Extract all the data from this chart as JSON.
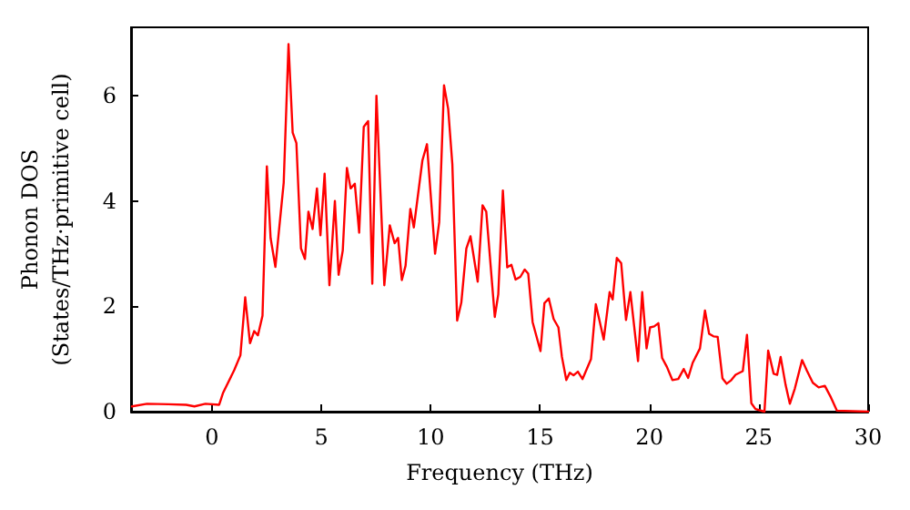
{
  "chart_data": {
    "type": "line",
    "xlabel": "Frequency (THz)",
    "ylabel": "Phonon DOS\n(States/THz·primitive cell)",
    "xlim": [
      -3.7,
      30
    ],
    "ylim": [
      0,
      7.3
    ],
    "xticks": [
      0,
      5,
      10,
      15,
      20,
      25,
      30
    ],
    "yticks": [
      0,
      2,
      4,
      6
    ],
    "grid": false,
    "marker": "none",
    "line_style": "solid",
    "series": [
      {
        "color": "#ff0000",
        "x": [
          -3.66,
          -2.97,
          -2,
          -1.18,
          -0.8,
          -0.3,
          0.33,
          0.5,
          1.02,
          1.3,
          1.52,
          1.74,
          1.93,
          2.1,
          2.31,
          2.51,
          2.68,
          2.9,
          3.28,
          3.5,
          3.69,
          3.86,
          4.07,
          4.25,
          4.41,
          4.6,
          4.8,
          4.96,
          5.15,
          5.37,
          5.62,
          5.79,
          5.98,
          6.17,
          6.34,
          6.53,
          6.73,
          6.94,
          7.14,
          7.33,
          7.52,
          7.88,
          8.13,
          8.35,
          8.51,
          8.68,
          8.85,
          9.07,
          9.23,
          9.62,
          9.83,
          10.2,
          10.39,
          10.61,
          10.8,
          10.99,
          11.21,
          11.4,
          11.63,
          11.82,
          12.15,
          12.37,
          12.54,
          12.93,
          13.09,
          13.3,
          13.5,
          13.69,
          13.88,
          14.1,
          14.3,
          14.46,
          14.66,
          15.02,
          15.2,
          15.4,
          15.62,
          15.84,
          16.0,
          16.2,
          16.36,
          16.53,
          16.73,
          16.94,
          17.33,
          17.55,
          17.91,
          18.18,
          18.32,
          18.51,
          18.71,
          18.93,
          19.13,
          19.48,
          19.67,
          19.87,
          20.03,
          20.22,
          20.41,
          20.58,
          20.8,
          21.05,
          21.32,
          21.57,
          21.77,
          21.98,
          22.31,
          22.54,
          22.73,
          22.93,
          23.12,
          23.34,
          23.53,
          23.72,
          23.94,
          24.27,
          24.46,
          24.66,
          24.85,
          25.26,
          25.43,
          25.68,
          25.84,
          26.0,
          26.23,
          26.42,
          26.65,
          26.98,
          27.2,
          27.47,
          27.74,
          28.02,
          28.3,
          28.57,
          30
        ],
        "values": [
          0.1,
          0.15,
          0.14,
          0.13,
          0.1,
          0.15,
          0.13,
          0.35,
          0.79,
          1.07,
          2.17,
          1.3,
          1.53,
          1.45,
          1.82,
          4.66,
          3.3,
          2.75,
          4.35,
          6.98,
          5.3,
          5.1,
          3.1,
          2.9,
          3.8,
          3.47,
          4.24,
          3.35,
          4.52,
          2.4,
          4.0,
          2.6,
          3.06,
          4.63,
          4.24,
          4.33,
          3.4,
          5.41,
          5.52,
          2.43,
          6.0,
          2.4,
          3.54,
          3.2,
          3.3,
          2.5,
          2.77,
          3.85,
          3.5,
          4.77,
          5.08,
          3.0,
          3.6,
          6.2,
          5.75,
          4.7,
          1.73,
          2.07,
          3.1,
          3.33,
          2.47,
          3.92,
          3.8,
          1.8,
          2.23,
          4.2,
          2.74,
          2.79,
          2.51,
          2.56,
          2.7,
          2.62,
          1.7,
          1.15,
          2.06,
          2.15,
          1.76,
          1.6,
          1.04,
          0.6,
          0.74,
          0.69,
          0.76,
          0.62,
          1.0,
          2.04,
          1.37,
          2.27,
          2.13,
          2.92,
          2.82,
          1.74,
          2.27,
          0.96,
          2.27,
          1.2,
          1.6,
          1.62,
          1.68,
          1.02,
          0.85,
          0.6,
          0.62,
          0.81,
          0.64,
          0.93,
          1.2,
          1.92,
          1.48,
          1.43,
          1.42,
          0.63,
          0.53,
          0.59,
          0.7,
          0.77,
          1.46,
          0.16,
          0.05,
          0,
          1.16,
          0.72,
          0.7,
          1.04,
          0.5,
          0.15,
          0.44,
          0.98,
          0.78,
          0.55,
          0.46,
          0.49,
          0.27,
          0.02,
          0
        ]
      }
    ]
  }
}
